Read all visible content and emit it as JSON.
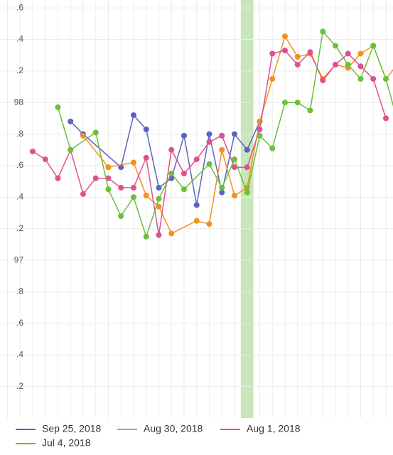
{
  "chart_data": {
    "type": "line",
    "categories": [
      null,
      null,
      null,
      null,
      null,
      null,
      null,
      null,
      null,
      null,
      null,
      null,
      null,
      null,
      null,
      null,
      null,
      null,
      null,
      null,
      null,
      null,
      null,
      null,
      null,
      null,
      null,
      null,
      null,
      null,
      null,
      null
    ],
    "highlight": 19,
    "ylim": [
      96,
      98.65
    ],
    "yticks": [
      {
        "value": 98.6,
        "label": ".6"
      },
      {
        "value": 98.4,
        "label": ".4"
      },
      {
        "value": 98.2,
        "label": ".2"
      },
      98,
      {
        "value": 97.8,
        "label": ".8"
      },
      {
        "value": 97.6,
        "label": ".6"
      },
      {
        "value": 97.4,
        "label": ".4"
      },
      {
        "value": 97.2,
        "label": ".2"
      },
      97,
      {
        "value": 96.8,
        "label": ".8"
      },
      {
        "value": 96.6,
        "label": ".6"
      },
      {
        "value": 96.4,
        "label": ".4"
      },
      {
        "value": 96.2,
        "label": ".2"
      }
    ],
    "grid": true,
    "series": [
      {
        "name": "Sep 25, 2018",
        "color": "#5b63c0",
        "x": [
          5,
          6,
          9,
          10,
          11,
          12,
          13,
          14,
          15,
          16,
          17,
          18,
          19,
          20
        ],
        "values": [
          97.88,
          97.8,
          97.59,
          97.92,
          97.83,
          97.46,
          97.52,
          97.79,
          97.35,
          97.8,
          97.43,
          97.8,
          97.7,
          97.88
        ]
      },
      {
        "name": "Aug 30, 2018",
        "color": "#f0921c",
        "x": [
          6,
          8,
          10,
          11,
          12,
          13,
          15,
          16,
          17,
          18,
          19,
          20,
          21,
          22,
          23,
          24,
          25,
          26,
          27,
          28,
          29,
          30,
          31
        ],
        "values": [
          97.79,
          97.59,
          97.62,
          97.41,
          97.34,
          97.17,
          97.25,
          97.23,
          97.7,
          97.41,
          97.46,
          97.88,
          98.15,
          98.42,
          98.29,
          98.31,
          98.15,
          98.24,
          98.22,
          98.31,
          98.36,
          98.15,
          98.25
        ]
      },
      {
        "name": "Aug 1, 2018",
        "color": "#e0508e",
        "x": [
          2,
          3,
          4,
          5,
          6,
          7,
          8,
          9,
          10,
          11,
          12,
          13,
          14,
          15,
          16,
          17,
          18,
          19,
          20,
          21,
          22,
          23,
          24,
          25,
          26,
          27,
          28,
          29,
          30
        ],
        "values": [
          97.69,
          97.64,
          97.52,
          97.7,
          97.42,
          97.52,
          97.52,
          97.46,
          97.46,
          97.65,
          97.16,
          97.7,
          97.55,
          97.64,
          97.75,
          97.79,
          97.59,
          97.59,
          97.83,
          98.31,
          98.33,
          98.24,
          98.32,
          98.14,
          98.24,
          98.31,
          98.23,
          98.15,
          97.9
        ]
      },
      {
        "name": "Jul 4, 2018",
        "color": "#6cbf3a",
        "x": [
          4,
          5,
          7,
          8,
          9,
          10,
          11,
          12,
          13,
          14,
          16,
          17,
          18,
          19,
          20,
          21,
          22,
          23,
          24,
          25,
          26,
          27,
          28,
          29,
          30,
          31
        ],
        "values": [
          97.97,
          97.7,
          97.81,
          97.45,
          97.28,
          97.4,
          97.15,
          97.39,
          97.55,
          97.45,
          97.61,
          97.46,
          97.64,
          97.43,
          97.79,
          97.71,
          98.0,
          98.0,
          97.95,
          98.45,
          98.36,
          98.24,
          98.15,
          98.36,
          98.15,
          97.86
        ]
      }
    ]
  }
}
